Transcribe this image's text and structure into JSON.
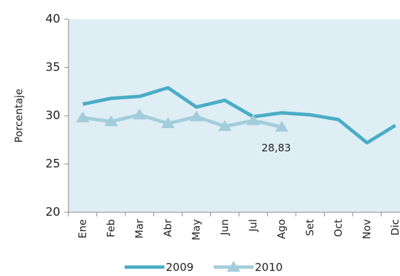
{
  "chart_data": {
    "type": "line",
    "y_label": "Porcentaje",
    "categories": [
      "Ene",
      "Feb",
      "Mar",
      "Abr",
      "May",
      "Jun",
      "Jul",
      "Ago",
      "Set",
      "Oct",
      "Nov",
      "Dic"
    ],
    "series": [
      {
        "name": "2009",
        "color": "#4bacc6",
        "values": [
          31.2,
          31.8,
          32.0,
          32.9,
          30.9,
          31.6,
          29.9,
          30.3,
          30.1,
          29.6,
          27.2,
          29.0
        ]
      },
      {
        "name": "2010",
        "color": "#a3cdda",
        "marker": "triangle",
        "values": [
          29.8,
          29.4,
          30.1,
          29.2,
          29.9,
          28.9,
          29.5,
          28.83,
          null,
          null,
          null,
          null
        ],
        "value_labels": [
          null,
          null,
          null,
          null,
          null,
          null,
          null,
          "28,83",
          null,
          null,
          null,
          null
        ]
      }
    ],
    "ylim": [
      20,
      40
    ],
    "yticks": [
      20,
      25,
      30,
      35,
      40
    ],
    "plot_background": "#deeef4"
  }
}
